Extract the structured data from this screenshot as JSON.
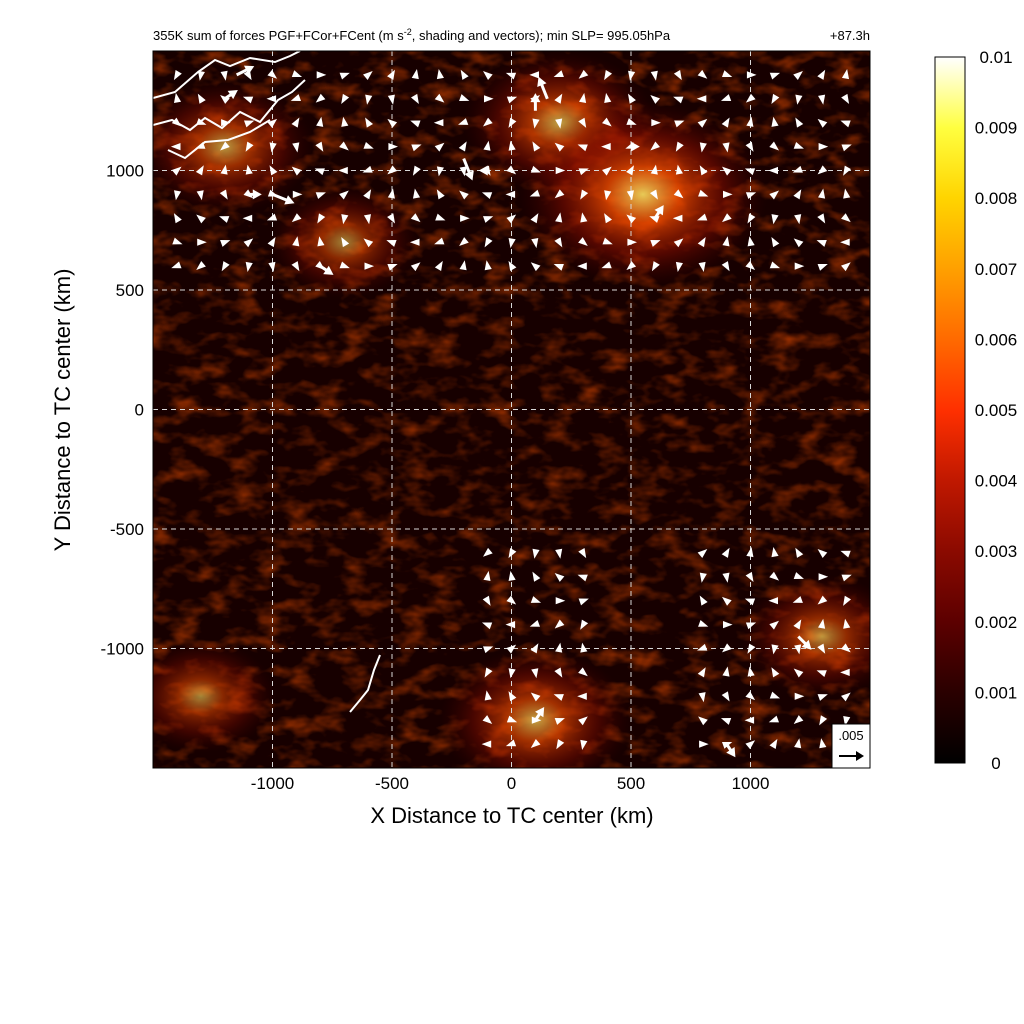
{
  "chart_data": {
    "type": "heatmap",
    "title": "355K sum of forces PGF+FCor+FCent (m s⁻², shading and vectors); min SLP= 995.05hPa",
    "title_prefix": "355K sum of forces PGF+FCor+FCent (m s",
    "title_exponent": "-2",
    "title_suffix": ", shading and vectors); min SLP= 995.05hPa",
    "forecast_hour": "+87.3h",
    "xlabel": "X Distance to TC center (km)",
    "ylabel": "Y Distance to TC center (km)",
    "xlim": [
      -1500,
      1500
    ],
    "ylim": [
      -1500,
      1500
    ],
    "x_ticks": [
      -1000,
      -500,
      0,
      500,
      1000
    ],
    "y_ticks": [
      1000,
      500,
      0,
      -500,
      -1000
    ],
    "grid": true,
    "vector_reference": {
      "label": ".005",
      "magnitude": 0.005
    },
    "colorbar": {
      "min": 0,
      "max": 0.01,
      "tick_labels": [
        "0.01",
        "0.009",
        "0.008",
        "0.007",
        "0.006",
        "0.005",
        "0.004",
        "0.003",
        "0.002",
        "0.001",
        "0"
      ],
      "colors": [
        "#000000",
        "#2a0000",
        "#5c0000",
        "#8b0a00",
        "#c01800",
        "#ff3000",
        "#ff6a00",
        "#ffa000",
        "#ffd400",
        "#ffff40",
        "#ffffff"
      ]
    },
    "hotspots": [
      {
        "x": -1200,
        "y": 1100,
        "value": 0.0035
      },
      {
        "x": 200,
        "y": 1200,
        "value": 0.004
      },
      {
        "x": 550,
        "y": 900,
        "value": 0.006
      },
      {
        "x": 1300,
        "y": -950,
        "value": 0.003
      },
      {
        "x": 100,
        "y": -1300,
        "value": 0.004
      },
      {
        "x": -1300,
        "y": -1200,
        "value": 0.0025
      },
      {
        "x": -700,
        "y": 700,
        "value": 0.0025
      }
    ],
    "vectors": [
      {
        "x": -1150,
        "y": 1400,
        "u": 0.004,
        "v": 0.002
      },
      {
        "x": -1200,
        "y": 1300,
        "u": 0.003,
        "v": 0.002
      },
      {
        "x": -1000,
        "y": 900,
        "u": 0.005,
        "v": -0.002
      },
      {
        "x": -1100,
        "y": 900,
        "u": 0.003,
        "v": 0.0
      },
      {
        "x": -800,
        "y": 600,
        "u": 0.003,
        "v": -0.002
      },
      {
        "x": -200,
        "y": 1050,
        "u": 0.002,
        "v": -0.005
      },
      {
        "x": 150,
        "y": 1300,
        "u": -0.002,
        "v": 0.005
      },
      {
        "x": 100,
        "y": 1250,
        "u": 0.0,
        "v": 0.004
      },
      {
        "x": 600,
        "y": 800,
        "u": 0.002,
        "v": 0.003
      },
      {
        "x": 1200,
        "y": -950,
        "u": 0.003,
        "v": -0.003
      },
      {
        "x": 900,
        "y": -1400,
        "u": 0.002,
        "v": -0.003
      },
      {
        "x": 100,
        "y": -1300,
        "u": 0.002,
        "v": 0.003
      },
      {
        "x": -100,
        "y": 1000,
        "u": -0.002,
        "v": 0.0
      },
      {
        "x": 500,
        "y": 1100,
        "u": 0.002,
        "v": 0.0
      }
    ]
  }
}
